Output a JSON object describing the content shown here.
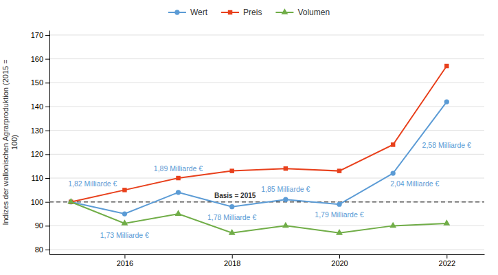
{
  "chart_data": {
    "type": "line",
    "y_label": "Indizes der wallonischen Agrarproduktion (2015 =\n100)",
    "x": [
      2015,
      2016,
      2017,
      2018,
      2019,
      2020,
      2021,
      2022
    ],
    "series": [
      {
        "name": "Wert",
        "color": "#5b9bd5",
        "marker": "circle",
        "line_style": "solid",
        "values": [
          100,
          95,
          104,
          98,
          101,
          99,
          112,
          142
        ]
      },
      {
        "name": "Preis",
        "color": "#e8401c",
        "marker": "square",
        "line_style": "solid",
        "values": [
          100,
          105,
          110,
          113,
          114,
          113,
          124,
          157
        ]
      },
      {
        "name": "Volumen",
        "color": "#70ad47",
        "marker": "triangle",
        "line_style": "solid",
        "values": [
          100,
          91,
          95,
          87,
          90,
          87,
          90,
          91
        ]
      }
    ],
    "xlim": [
      2014.6,
      2022.7
    ],
    "xticks": [
      2016,
      2018,
      2020,
      2022
    ],
    "ylim": [
      78,
      172
    ],
    "yticks": [
      80,
      90,
      100,
      110,
      120,
      130,
      140,
      150,
      160,
      170
    ],
    "grid": "y",
    "legend": "top",
    "reference_lines": [
      {
        "y": 100,
        "label": "Basis = 2015",
        "color": "#555555",
        "line_style": "dashed"
      }
    ],
    "annotations": [
      {
        "text": "1,82 Milliarde €",
        "x": 2015,
        "y": 100,
        "color": "#5b9bd5"
      },
      {
        "text": "1,73 Milliarde €",
        "x": 2016,
        "y": 95,
        "color": "#5b9bd5"
      },
      {
        "text": "1,89 Milliarde €",
        "x": 2017,
        "y": 104,
        "color": "#5b9bd5"
      },
      {
        "text": "1,78 Milliarde €",
        "x": 2018,
        "y": 98,
        "color": "#5b9bd5"
      },
      {
        "text": "1,85 Milliarde €",
        "x": 2019,
        "y": 101,
        "color": "#5b9bd5"
      },
      {
        "text": "1,79 Milliarde €",
        "x": 2020,
        "y": 99,
        "color": "#5b9bd5"
      },
      {
        "text": "2,04 Milliarde €",
        "x": 2021,
        "y": 112,
        "color": "#5b9bd5"
      },
      {
        "text": "2,58 Milliarde €",
        "x": 2022,
        "y": 142,
        "color": "#5b9bd5"
      }
    ]
  }
}
